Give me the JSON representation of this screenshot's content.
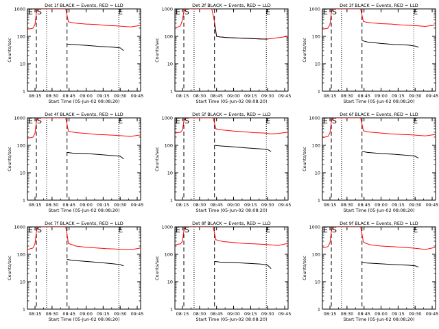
{
  "figure": {
    "xaxis_title": "Start Time (05-Jun-02 08:08:20)",
    "yaxis_title": "Counts/sec",
    "x_tick_labels": [
      "08:15",
      "08:30",
      "08:45",
      "09:00",
      "09:15",
      "09:30",
      "09:45"
    ],
    "y_tick_labels": [
      "1",
      "10",
      "100",
      "1000"
    ],
    "marker_labels": {
      "left": "E",
      "start": "S",
      "end": "E"
    }
  },
  "chart_data": [
    {
      "type": "line",
      "detector": "Det 1f",
      "title": "Det 1f BLACK = Events, RED = LLD",
      "xlim": [
        8.1389,
        9.8
      ],
      "ylim": [
        1,
        1000
      ],
      "yscale": "log",
      "xticks": [
        8.25,
        8.5,
        8.75,
        9.0,
        9.25,
        9.5,
        9.75
      ],
      "dashed_lines": [
        8.27,
        8.72
      ],
      "dotted_lines": [
        8.42,
        9.48
      ],
      "series": [
        {
          "name": "LLD",
          "color": "#ff0000",
          "x": [
            8.14,
            8.22,
            8.25,
            8.27,
            8.29,
            8.31,
            8.35,
            8.4,
            8.45,
            8.5,
            8.55,
            8.6,
            8.65,
            8.7,
            8.72,
            8.74,
            8.78,
            8.85,
            9.0,
            9.15,
            9.3,
            9.45,
            9.55,
            9.65,
            9.8
          ],
          "values": [
            180,
            200,
            270,
            700,
            1000,
            1000,
            1000,
            1000,
            1000,
            1000,
            1000,
            1000,
            1000,
            1000,
            600,
            340,
            320,
            300,
            280,
            270,
            250,
            240,
            230,
            220,
            250
          ]
        },
        {
          "name": "Events",
          "color": "#000000",
          "x": [
            8.72,
            8.8,
            9.0,
            9.2,
            9.4,
            9.5,
            9.55
          ],
          "values": [
            52,
            50,
            47,
            43,
            40,
            38,
            30
          ]
        }
      ]
    },
    {
      "type": "line",
      "detector": "Det 2f",
      "title": "Det 2f BLACK = Events, RED = LLD",
      "xlim": [
        8.1389,
        9.8
      ],
      "ylim": [
        1,
        1000
      ],
      "yscale": "log",
      "xticks": [
        8.25,
        8.5,
        8.75,
        9.0,
        9.25,
        9.5,
        9.75
      ],
      "dashed_lines": [
        8.27,
        8.72
      ],
      "dotted_lines": [
        8.42,
        9.48
      ],
      "series": [
        {
          "name": "LLD",
          "color": "#ff0000",
          "x": [
            8.14,
            8.22,
            8.25,
            8.27,
            8.3,
            8.4,
            8.5,
            8.6,
            8.65,
            8.68,
            8.7,
            8.72,
            8.75,
            8.8,
            8.9,
            9.0,
            9.2,
            9.4,
            9.5,
            9.6,
            9.8
          ],
          "values": [
            200,
            240,
            400,
            800,
            1000,
            1000,
            1000,
            1000,
            1000,
            1000,
            600,
            340,
            100,
            95,
            90,
            88,
            85,
            80,
            80,
            85,
            100
          ]
        },
        {
          "name": "Events",
          "color": "#000000",
          "x": [
            8.72,
            8.75,
            8.8,
            8.9,
            9.0,
            9.2,
            9.4,
            9.5
          ],
          "values": [
            300,
            100,
            95,
            90,
            88,
            84,
            80,
            79
          ]
        }
      ]
    },
    {
      "type": "line",
      "detector": "Det 3f",
      "title": "Det 3f BLACK = Events, RED = LLD",
      "xlim": [
        8.1389,
        9.8
      ],
      "ylim": [
        1,
        1000
      ],
      "yscale": "log",
      "xticks": [
        8.25,
        8.5,
        8.75,
        9.0,
        9.25,
        9.5,
        9.75
      ],
      "dashed_lines": [
        8.27,
        8.72
      ],
      "dotted_lines": [
        8.42,
        9.48
      ],
      "series": [
        {
          "name": "LLD",
          "color": "#ff0000",
          "x": [
            8.14,
            8.22,
            8.25,
            8.27,
            8.29,
            8.35,
            8.45,
            8.55,
            8.65,
            8.7,
            8.72,
            8.74,
            8.78,
            8.85,
            9.0,
            9.15,
            9.3,
            9.45,
            9.55,
            9.65,
            9.8
          ],
          "values": [
            180,
            200,
            270,
            700,
            1000,
            1000,
            1000,
            1000,
            1000,
            1000,
            600,
            350,
            330,
            310,
            290,
            280,
            260,
            250,
            240,
            230,
            260
          ]
        },
        {
          "name": "Events",
          "color": "#000000",
          "x": [
            8.72,
            8.8,
            9.0,
            9.2,
            9.4,
            9.5,
            9.55
          ],
          "values": [
            70,
            62,
            55,
            50,
            48,
            44,
            40
          ]
        }
      ]
    },
    {
      "type": "line",
      "detector": "Det 4f",
      "title": "Det 4f BLACK = Events, RED = LLD",
      "xlim": [
        8.1389,
        9.8
      ],
      "ylim": [
        1,
        1000
      ],
      "yscale": "log",
      "xticks": [
        8.25,
        8.5,
        8.75,
        9.0,
        9.25,
        9.5,
        9.75
      ],
      "dashed_lines": [
        8.27,
        8.72
      ],
      "dotted_lines": [
        8.42,
        9.48
      ],
      "series": [
        {
          "name": "LLD",
          "color": "#ff0000",
          "x": [
            8.14,
            8.22,
            8.25,
            8.27,
            8.29,
            8.35,
            8.45,
            8.55,
            8.65,
            8.7,
            8.72,
            8.74,
            8.78,
            8.85,
            9.0,
            9.15,
            9.3,
            9.45,
            9.55,
            9.65,
            9.8
          ],
          "values": [
            180,
            200,
            270,
            700,
            1000,
            1000,
            1000,
            1000,
            1000,
            1000,
            600,
            330,
            310,
            290,
            270,
            250,
            240,
            230,
            220,
            210,
            240
          ]
        },
        {
          "name": "Events",
          "color": "#000000",
          "x": [
            8.72,
            8.8,
            9.0,
            9.2,
            9.4,
            9.5,
            9.55
          ],
          "values": [
            55,
            52,
            50,
            46,
            42,
            40,
            32
          ]
        }
      ]
    },
    {
      "type": "line",
      "detector": "Det 5f",
      "title": "Det 5f BLACK = Events, RED = LLD",
      "xlim": [
        8.1389,
        9.8
      ],
      "ylim": [
        1,
        1000
      ],
      "yscale": "log",
      "xticks": [
        8.25,
        8.5,
        8.75,
        9.0,
        9.25,
        9.5,
        9.75
      ],
      "dashed_lines": [
        8.27,
        8.72
      ],
      "dotted_lines": [
        8.42,
        9.48
      ],
      "series": [
        {
          "name": "LLD",
          "color": "#ff0000",
          "x": [
            8.14,
            8.22,
            8.25,
            8.27,
            8.29,
            8.35,
            8.45,
            8.55,
            8.65,
            8.7,
            8.72,
            8.74,
            8.78,
            8.85,
            9.0,
            9.15,
            9.3,
            9.45,
            9.55,
            9.65,
            9.8
          ],
          "values": [
            280,
            300,
            360,
            750,
            1000,
            1000,
            1000,
            1000,
            1000,
            1000,
            650,
            400,
            380,
            360,
            330,
            310,
            290,
            280,
            260,
            270,
            300
          ]
        },
        {
          "name": "Events",
          "color": "#000000",
          "x": [
            8.72,
            8.8,
            9.0,
            9.2,
            9.4,
            9.5,
            9.55
          ],
          "values": [
            100,
            95,
            88,
            80,
            74,
            70,
            60
          ]
        }
      ]
    },
    {
      "type": "line",
      "detector": "Det 6f",
      "title": "Det 6f BLACK = Events, RED = LLD",
      "xlim": [
        8.1389,
        9.8
      ],
      "ylim": [
        1,
        1000
      ],
      "yscale": "log",
      "xticks": [
        8.25,
        8.5,
        8.75,
        9.0,
        9.25,
        9.5,
        9.75
      ],
      "dashed_lines": [
        8.27,
        8.72
      ],
      "dotted_lines": [
        8.42,
        9.48
      ],
      "series": [
        {
          "name": "LLD",
          "color": "#ff0000",
          "x": [
            8.14,
            8.22,
            8.25,
            8.27,
            8.29,
            8.35,
            8.45,
            8.55,
            8.65,
            8.7,
            8.72,
            8.74,
            8.78,
            8.85,
            9.0,
            9.15,
            9.3,
            9.45,
            9.55,
            9.65,
            9.8
          ],
          "values": [
            190,
            210,
            280,
            700,
            1000,
            1000,
            1000,
            1000,
            1000,
            1000,
            600,
            340,
            320,
            300,
            280,
            260,
            250,
            240,
            230,
            220,
            250
          ]
        },
        {
          "name": "Events",
          "color": "#000000",
          "x": [
            8.72,
            8.8,
            9.0,
            9.2,
            9.4,
            9.5,
            9.55
          ],
          "values": [
            60,
            55,
            50,
            47,
            43,
            40,
            34
          ]
        }
      ]
    },
    {
      "type": "line",
      "detector": "Det 7f",
      "title": "Det 7f BLACK = Events, RED = LLD",
      "xlim": [
        8.1389,
        9.8
      ],
      "ylim": [
        1,
        1000
      ],
      "yscale": "log",
      "xticks": [
        8.25,
        8.5,
        8.75,
        9.0,
        9.25,
        9.5,
        9.75
      ],
      "dashed_lines": [
        8.27,
        8.72
      ],
      "dotted_lines": [
        8.42,
        9.48
      ],
      "series": [
        {
          "name": "LLD",
          "color": "#ff0000",
          "x": [
            8.14,
            8.22,
            8.25,
            8.27,
            8.29,
            8.35,
            8.45,
            8.55,
            8.65,
            8.7,
            8.72,
            8.74,
            8.78,
            8.85,
            9.0,
            9.15,
            9.3,
            9.45,
            9.55,
            9.65,
            9.8
          ],
          "values": [
            150,
            170,
            240,
            650,
            1000,
            1000,
            1000,
            1000,
            1000,
            1000,
            550,
            250,
            230,
            200,
            180,
            170,
            160,
            155,
            150,
            145,
            170
          ]
        },
        {
          "name": "Events",
          "color": "#000000",
          "x": [
            8.72,
            8.8,
            9.0,
            9.2,
            9.4,
            9.5,
            9.55
          ],
          "values": [
            65,
            60,
            55,
            50,
            45,
            42,
            38
          ]
        }
      ]
    },
    {
      "type": "line",
      "detector": "Det 8f",
      "title": "Det 8f BLACK = Events, RED = LLD",
      "xlim": [
        8.1389,
        9.8
      ],
      "ylim": [
        1,
        1000
      ],
      "yscale": "log",
      "xticks": [
        8.25,
        8.5,
        8.75,
        9.0,
        9.25,
        9.5,
        9.75
      ],
      "dashed_lines": [
        8.27,
        8.72
      ],
      "dotted_lines": [
        8.42,
        9.48
      ],
      "series": [
        {
          "name": "LLD",
          "color": "#ff0000",
          "x": [
            8.14,
            8.22,
            8.25,
            8.27,
            8.29,
            8.35,
            8.45,
            8.55,
            8.65,
            8.7,
            8.72,
            8.74,
            8.78,
            8.85,
            9.0,
            9.15,
            9.3,
            9.45,
            9.55,
            9.65,
            9.8
          ],
          "values": [
            220,
            240,
            300,
            700,
            1000,
            1000,
            1000,
            1000,
            1000,
            1000,
            600,
            340,
            320,
            290,
            270,
            250,
            240,
            230,
            220,
            210,
            250
          ]
        },
        {
          "name": "Events",
          "color": "#000000",
          "x": [
            8.72,
            8.8,
            9.0,
            9.2,
            9.4,
            9.5,
            9.55
          ],
          "values": [
            55,
            52,
            50,
            47,
            44,
            40,
            30
          ]
        }
      ]
    },
    {
      "type": "line",
      "detector": "Det 9f",
      "title": "Det 9f BLACK = Events, RED = LLD",
      "xlim": [
        8.1389,
        9.8
      ],
      "ylim": [
        1,
        1000
      ],
      "yscale": "log",
      "xticks": [
        8.25,
        8.5,
        8.75,
        9.0,
        9.25,
        9.5,
        9.75
      ],
      "dashed_lines": [
        8.27,
        8.72
      ],
      "dotted_lines": [
        8.42,
        9.48
      ],
      "series": [
        {
          "name": "LLD",
          "color": "#ff0000",
          "x": [
            8.14,
            8.22,
            8.25,
            8.27,
            8.29,
            8.35,
            8.45,
            8.55,
            8.65,
            8.7,
            8.72,
            8.74,
            8.78,
            8.85,
            9.0,
            9.15,
            9.3,
            9.45,
            9.55,
            9.65,
            9.8
          ],
          "values": [
            170,
            190,
            260,
            650,
            1000,
            1000,
            1000,
            1000,
            1000,
            1000,
            550,
            280,
            250,
            220,
            200,
            190,
            180,
            170,
            160,
            150,
            180
          ]
        },
        {
          "name": "Events",
          "color": "#000000",
          "x": [
            8.72,
            8.8,
            9.0,
            9.2,
            9.4,
            9.5,
            9.55
          ],
          "values": [
            50,
            48,
            45,
            42,
            40,
            38,
            34
          ]
        }
      ]
    }
  ]
}
